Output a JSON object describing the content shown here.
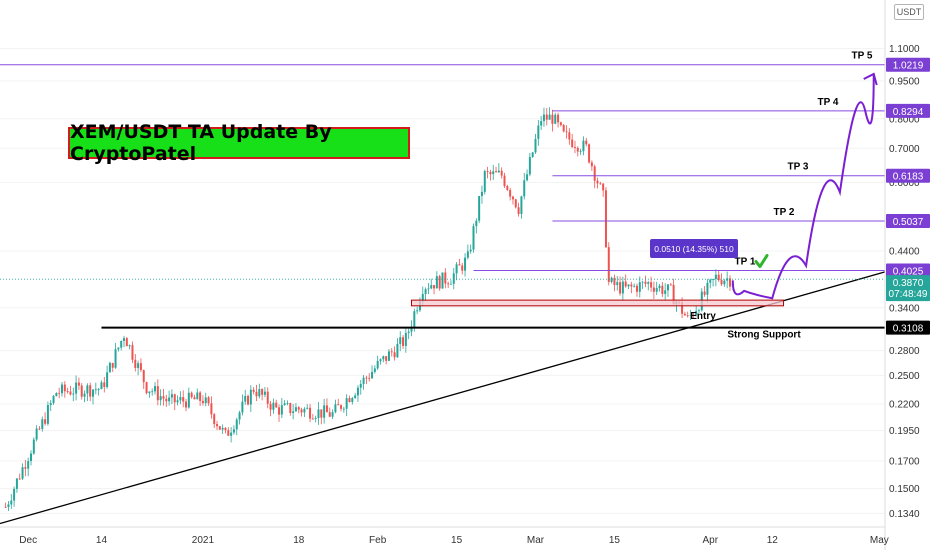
{
  "chart_data": {
    "type": "candlestick",
    "title": "XEM/USDT TA Update By CryptoPatel",
    "symbol": "XEM/USDT",
    "unit_label": "USDT",
    "y_scale": "log",
    "ylim": [
      0.126,
      1.37
    ],
    "price_ticks": [
      "1.1000",
      "0.9500",
      "0.8000",
      "0.7000",
      "0.6000",
      "0.4400",
      "0.3400",
      "0.2800",
      "0.2500",
      "0.2200",
      "0.1950",
      "0.1700",
      "0.1500",
      "0.1340"
    ],
    "x_ticks": [
      "Dec",
      "14",
      "2021",
      "18",
      "Feb",
      "15",
      "Mar",
      "15",
      "Apr",
      "12",
      "May"
    ],
    "x_range": [
      "2020-11-26",
      "2021-05-02"
    ],
    "x_tick_dates": [
      "2020-12-01",
      "2020-12-14",
      "2021-01-01",
      "2021-01-18",
      "2021-02-01",
      "2021-02-15",
      "2021-03-01",
      "2021-03-15",
      "2021-04-01",
      "2021-04-12",
      "2021-05-01"
    ],
    "targets": [
      {
        "label": "TP 1",
        "value": 0.4025,
        "price_text": "0.4025"
      },
      {
        "label": "TP 2",
        "value": 0.5037,
        "price_text": "0.5037"
      },
      {
        "label": "TP 3",
        "value": 0.6183,
        "price_text": "0.6183"
      },
      {
        "label": "TP 4",
        "value": 0.8294,
        "price_text": "0.8294"
      },
      {
        "label": "TP 5",
        "value": 1.0219,
        "price_text": "1.0219"
      }
    ],
    "support": {
      "label": "Strong Support",
      "value": 0.3108,
      "price_text": "0.3108"
    },
    "current": {
      "price": 0.387,
      "price_text": "0.3870",
      "countdown": "07:48:49"
    },
    "entry_zone": {
      "label": "Entry",
      "low": 0.343,
      "high": 0.352,
      "from": "2021-02-07",
      "to": "2021-04-14"
    },
    "tooltip": "0.0510 (14.35%) 510",
    "tp1_hit": true,
    "trendline": [
      {
        "date": "2020-11-26",
        "value": 0.128
      },
      {
        "date": "2021-05-02",
        "value": 0.4
      }
    ],
    "projection_path": [
      {
        "date": "2021-04-05",
        "value": 0.385
      },
      {
        "date": "2021-04-09",
        "value": 0.35
      },
      {
        "date": "2021-04-15",
        "value": 0.36
      },
      {
        "date": "2021-04-21",
        "value": 0.47
      },
      {
        "date": "2021-04-27",
        "value": 0.7
      },
      {
        "date": "2021-04-30",
        "value": 0.98
      }
    ],
    "closes": [
      {
        "date": "2020-11-27",
        "value": 0.138
      },
      {
        "date": "2020-12-02",
        "value": 0.185
      },
      {
        "date": "2020-12-06",
        "value": 0.232
      },
      {
        "date": "2020-12-10",
        "value": 0.235
      },
      {
        "date": "2020-12-14",
        "value": 0.236
      },
      {
        "date": "2020-12-18",
        "value": 0.302
      },
      {
        "date": "2020-12-22",
        "value": 0.238
      },
      {
        "date": "2020-12-26",
        "value": 0.222
      },
      {
        "date": "2021-01-01",
        "value": 0.225
      },
      {
        "date": "2021-01-05",
        "value": 0.19
      },
      {
        "date": "2021-01-10",
        "value": 0.236
      },
      {
        "date": "2021-01-14",
        "value": 0.215
      },
      {
        "date": "2021-01-18",
        "value": 0.215
      },
      {
        "date": "2021-01-24",
        "value": 0.21
      },
      {
        "date": "2021-01-28",
        "value": 0.235
      },
      {
        "date": "2021-02-01",
        "value": 0.262
      },
      {
        "date": "2021-02-06",
        "value": 0.295
      },
      {
        "date": "2021-02-09",
        "value": 0.375
      },
      {
        "date": "2021-02-14",
        "value": 0.39
      },
      {
        "date": "2021-02-17",
        "value": 0.425
      },
      {
        "date": "2021-02-20",
        "value": 0.62
      },
      {
        "date": "2021-02-23",
        "value": 0.62
      },
      {
        "date": "2021-02-26",
        "value": 0.535
      },
      {
        "date": "2021-03-02",
        "value": 0.8
      },
      {
        "date": "2021-03-04",
        "value": 0.805
      },
      {
        "date": "2021-03-06",
        "value": 0.74
      },
      {
        "date": "2021-03-10",
        "value": 0.7
      },
      {
        "date": "2021-03-13",
        "value": 0.56
      },
      {
        "date": "2021-03-14",
        "value": 0.38
      },
      {
        "date": "2021-03-17",
        "value": 0.37
      },
      {
        "date": "2021-03-21",
        "value": 0.38
      },
      {
        "date": "2021-03-25",
        "value": 0.365
      },
      {
        "date": "2021-03-28",
        "value": 0.322
      },
      {
        "date": "2021-04-02",
        "value": 0.39
      },
      {
        "date": "2021-04-05",
        "value": 0.387
      }
    ]
  }
}
